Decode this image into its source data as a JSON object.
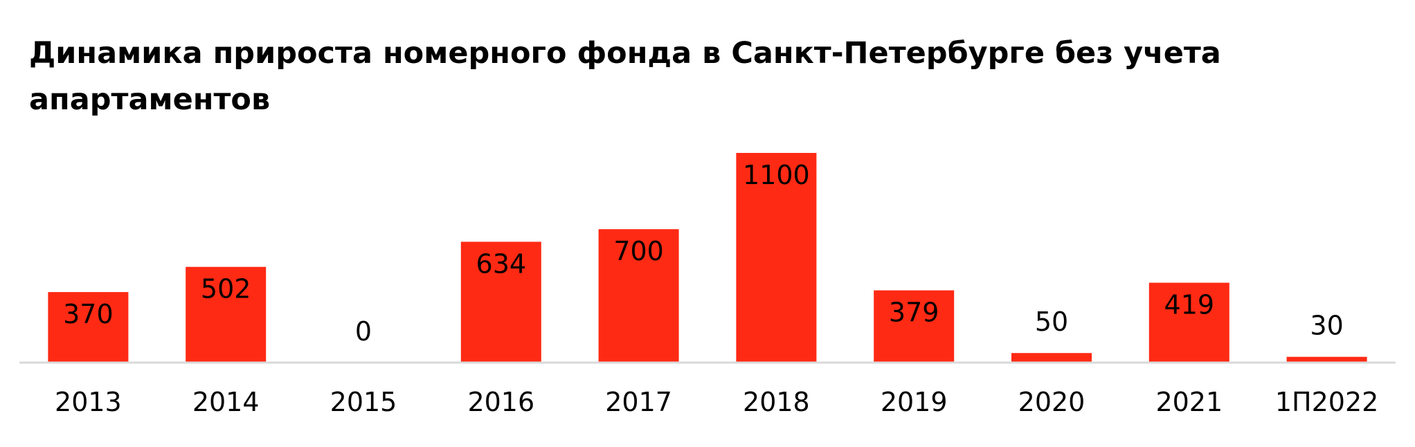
{
  "chart_data": {
    "type": "bar",
    "title": "Динамика прироста номерного фонда в Санкт-Петербурге без учета апартаментов",
    "categories": [
      "2013",
      "2014",
      "2015",
      "2016",
      "2017",
      "2018",
      "2019",
      "2020",
      "2021",
      "1П2022"
    ],
    "values": [
      370,
      502,
      0,
      634,
      700,
      1100,
      379,
      50,
      419,
      30
    ],
    "data_labels": [
      "370",
      "502",
      "0",
      "634",
      "700",
      "1100",
      "379",
      "50",
      "419",
      "30"
    ],
    "xlabel": "",
    "ylabel": "",
    "ylim": [
      0,
      1100
    ],
    "grid": false,
    "legend": "none",
    "bar_color": "#FF2A14",
    "axis_color": "#D9D9D9"
  }
}
